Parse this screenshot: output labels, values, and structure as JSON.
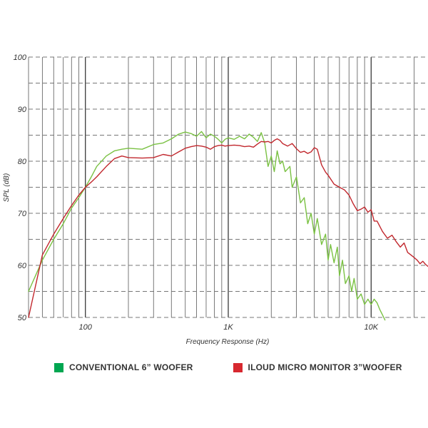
{
  "chart_data": {
    "type": "line",
    "title": "",
    "xlabel": "Frequency Response (Hz)",
    "ylabel": "SPL (dB)",
    "xscale": "log",
    "xlim": [
      40,
      25000
    ],
    "ylim": [
      50,
      100
    ],
    "x_ticks": [
      {
        "value": 100,
        "label": "100"
      },
      {
        "value": 1000,
        "label": "1K"
      },
      {
        "value": 10000,
        "label": "10K"
      }
    ],
    "y_ticks": [
      {
        "value": 50,
        "label": "50"
      },
      {
        "value": 60,
        "label": "60"
      },
      {
        "value": 70,
        "label": "70"
      },
      {
        "value": 80,
        "label": "80"
      },
      {
        "value": 90,
        "label": "90"
      },
      {
        "value": 100,
        "label": "100"
      }
    ],
    "grid": true,
    "legend_position": "bottom",
    "series": [
      {
        "name": "CONVENTIONAL 6” WOOFER",
        "color": "#7ac143",
        "x": [
          40,
          50,
          60,
          70,
          80,
          90,
          100,
          110,
          120,
          140,
          160,
          180,
          200,
          250,
          300,
          350,
          400,
          450,
          500,
          550,
          600,
          650,
          700,
          750,
          800,
          850,
          900,
          950,
          1000,
          1100,
          1200,
          1300,
          1400,
          1500,
          1600,
          1700,
          1800,
          1900,
          2000,
          2100,
          2200,
          2300,
          2400,
          2500,
          2700,
          2800,
          3000,
          3200,
          3400,
          3600,
          3800,
          4000,
          4200,
          4500,
          4800,
          5000,
          5200,
          5500,
          5800,
          6000,
          6300,
          6600,
          7000,
          7300,
          7600,
          8000,
          8500,
          9000,
          9500,
          10000,
          10500,
          11000,
          11500,
          12000,
          12500
        ],
        "y": [
          55,
          61,
          65,
          68,
          71,
          73,
          75,
          77,
          79,
          81,
          82,
          82.3,
          82.5,
          82.3,
          83.2,
          83.5,
          84.3,
          85.2,
          85.6,
          85.3,
          84.8,
          85.7,
          84.5,
          85.2,
          84.8,
          84.2,
          83.5,
          84.2,
          84.5,
          84.2,
          84.8,
          84.3,
          85.2,
          84.6,
          83.8,
          85.5,
          83.5,
          79,
          81,
          78,
          82,
          79.5,
          80,
          78,
          79,
          75,
          77,
          72,
          73,
          68,
          70,
          66,
          69,
          64,
          66,
          61,
          64,
          60.5,
          63.5,
          58,
          61,
          56.5,
          58,
          55,
          57.5,
          53.5,
          54.5,
          52.5,
          53.5,
          52.5,
          53.5,
          52.8,
          51.5,
          50.5,
          49.5
        ]
      },
      {
        "name": "ILOUD MICRO MONITOR 3”WOOFER",
        "color": "#c1272d",
        "x": [
          40,
          50,
          60,
          70,
          80,
          90,
          100,
          110,
          120,
          140,
          160,
          180,
          200,
          250,
          300,
          350,
          400,
          450,
          500,
          550,
          600,
          650,
          700,
          750,
          800,
          850,
          900,
          950,
          1000,
          1100,
          1200,
          1300,
          1400,
          1500,
          1600,
          1700,
          1800,
          1900,
          2000,
          2100,
          2200,
          2300,
          2400,
          2600,
          2800,
          3000,
          3200,
          3400,
          3600,
          3800,
          4000,
          4200,
          4500,
          4800,
          5000,
          5500,
          6000,
          6500,
          7000,
          7500,
          8000,
          8500,
          9000,
          9500,
          10000,
          10500,
          11000,
          12000,
          13000,
          14000,
          15000,
          16000,
          17000,
          18000,
          19000,
          20000,
          21000,
          22000,
          23000,
          24000,
          25000
        ],
        "y": [
          50,
          62,
          66,
          69,
          71.5,
          73.5,
          75,
          76,
          77,
          79,
          80.5,
          81,
          80.7,
          80.6,
          80.7,
          81.3,
          81,
          81.8,
          82.5,
          82.8,
          83,
          82.9,
          82.7,
          82.3,
          82.8,
          83,
          83.1,
          82.9,
          83,
          83.1,
          83,
          82.8,
          82.9,
          82.7,
          83.3,
          83.8,
          83.7,
          83.8,
          83.5,
          84,
          84.3,
          84,
          83.4,
          82.9,
          83.4,
          82.4,
          81.7,
          81.9,
          81.5,
          81.8,
          82.6,
          82.3,
          79.3,
          77.9,
          77.3,
          75.6,
          75,
          74.5,
          73.5,
          71.8,
          70.5,
          70.8,
          71.2,
          70.2,
          70.7,
          68.5,
          68.5,
          66.5,
          65.2,
          65.8,
          64.5,
          63.5,
          64.3,
          62.5,
          62,
          61.5,
          61,
          60.3,
          60.8,
          60.2,
          59.8
        ]
      }
    ]
  }
}
